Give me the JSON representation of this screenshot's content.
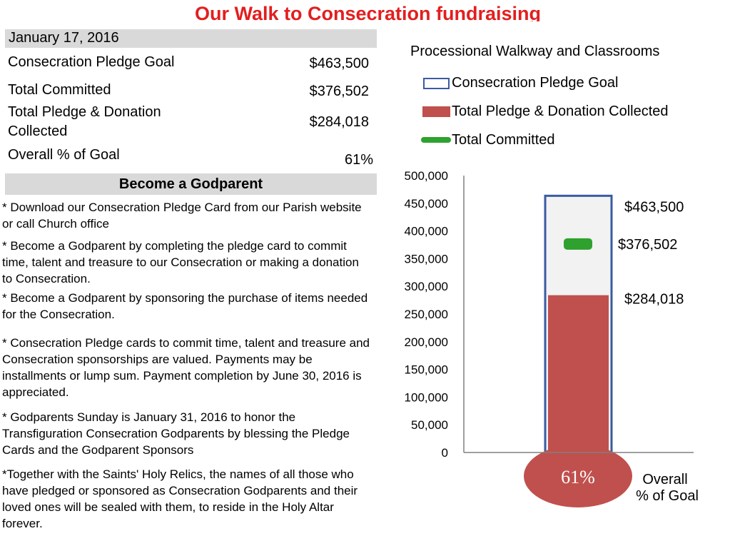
{
  "header": {
    "title": "Our Walk to Consecration fundraising"
  },
  "summary": {
    "date": "January 17, 2016",
    "rows": [
      {
        "label": "Consecration Pledge Goal",
        "value": "$463,500"
      },
      {
        "label": "Total Committed",
        "value": "$376,502"
      },
      {
        "label": "Total Pledge & Donation\nCollected",
        "value": "$284,018"
      },
      {
        "label": "Overall % of Goal",
        "value": "61%"
      }
    ]
  },
  "godparent": {
    "heading": "Become a Godparent",
    "notes": [
      "* Download our Consecration Pledge Card from our Parish website or call Church office",
      "* Become a Godparent by completing the pledge card to commit time, talent and treasure to our Consecration or making a donation to Consecration.",
      "* Become a Godparent by sponsoring the purchase of items needed for the Consecration.",
      "* Consecration Pledge cards to commit time, talent and treasure and Consecration sponsorships are valued. Payments may be installments or lump sum. Payment completion by June 30, 2016 is appreciated.",
      "* Godparents Sunday is January 31, 2016 to honor the Transfiguration Consecration Godparents by blessing the Pledge Cards and the Godparent Sponsors",
      "*Together with the Saints' Holy Relics, the names of all those who have pledged or sponsored as Consecration Godparents and their loved ones will be sealed with them, to reside in the Holy Altar forever."
    ]
  },
  "legend": {
    "goal": "Consecration Pledge Goal",
    "collected": "Total Pledge & Donation Collected",
    "committed": "Total Committed"
  },
  "colors": {
    "title": "#e31e1e",
    "goal": "#3a5ba2",
    "collected": "#c0504d",
    "committed": "#2ea12e",
    "bar_bg": "#f2f2f2"
  },
  "chart_data": {
    "type": "bar",
    "title": "Processional Walkway and Classrooms",
    "ylim": [
      0,
      500000
    ],
    "yticks": [
      0,
      50000,
      100000,
      150000,
      200000,
      250000,
      300000,
      350000,
      400000,
      450000,
      500000
    ],
    "ytick_labels": [
      "0",
      "50,000",
      "100,000",
      "150,000",
      "200,000",
      "250,000",
      "300,000",
      "350,000",
      "400,000",
      "450,000",
      "500,000"
    ],
    "series": [
      {
        "name": "Consecration Pledge Goal",
        "values": [
          463500
        ],
        "label": "$463,500"
      },
      {
        "name": "Total Pledge & Donation Collected",
        "values": [
          284018
        ],
        "label": "$284,018"
      },
      {
        "name": "Total Committed",
        "values": [
          376502
        ],
        "label": "$376,502"
      }
    ],
    "percent_of_goal": {
      "value": 61,
      "text": "61%",
      "caption_line1": "Overall",
      "caption_line2": "% of Goal"
    },
    "grid": false,
    "legend_position": "top"
  }
}
